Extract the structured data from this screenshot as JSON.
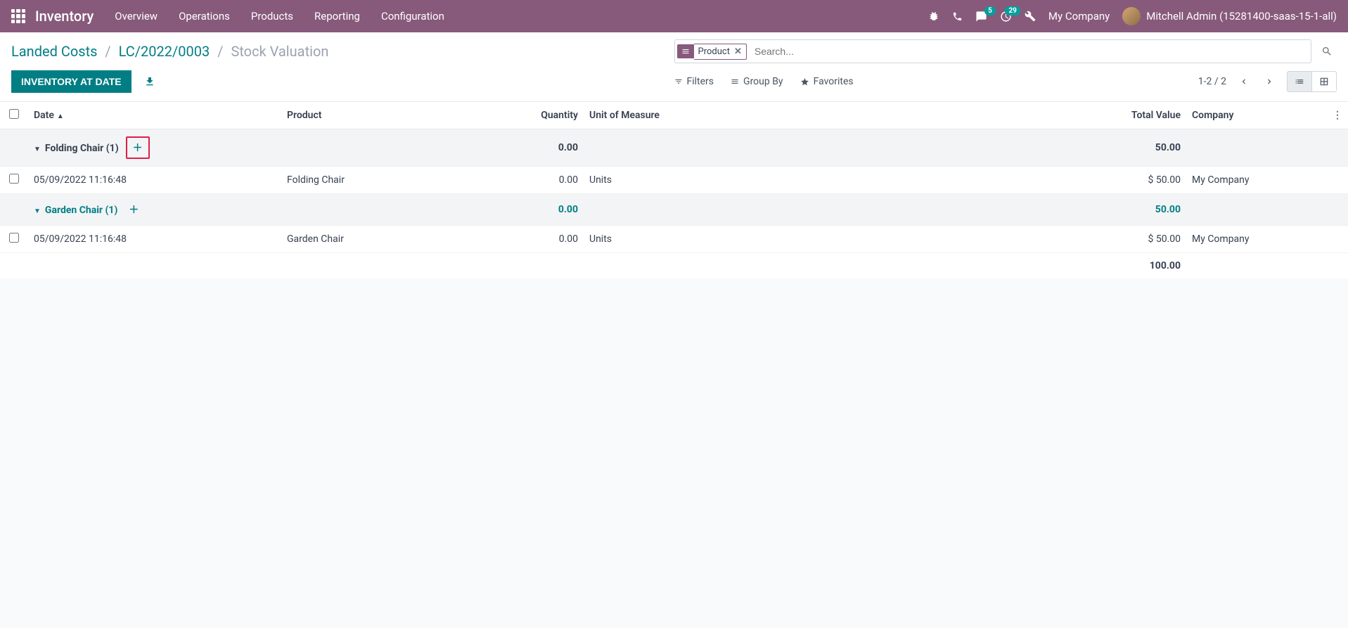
{
  "topnav": {
    "brand": "Inventory",
    "menu": [
      "Overview",
      "Operations",
      "Products",
      "Reporting",
      "Configuration"
    ],
    "msg_badge": "5",
    "activity_badge": "29",
    "company": "My Company",
    "user": "Mitchell Admin (15281400-saas-15-1-all)"
  },
  "breadcrumb": {
    "p1": "Landed Costs",
    "p2": "LC/2022/0003",
    "current": "Stock Valuation"
  },
  "search": {
    "facet_label": "Product",
    "placeholder": "Search..."
  },
  "buttons": {
    "inventory_at_date": "Inventory at Date"
  },
  "search_opts": {
    "filters": "Filters",
    "group_by": "Group By",
    "favorites": "Favorites"
  },
  "pager": "1-2 / 2",
  "columns": {
    "date": "Date",
    "product": "Product",
    "quantity": "Quantity",
    "uom": "Unit of Measure",
    "total": "Total Value",
    "company": "Company"
  },
  "groups": [
    {
      "title": "Folding Chair (1)",
      "qty": "0.00",
      "total": "50.00",
      "highlight_add": true,
      "teal": false,
      "rows": [
        {
          "date": "05/09/2022 11:16:48",
          "product": "Folding Chair",
          "qty": "0.00",
          "uom": "Units",
          "total": "$ 50.00",
          "company": "My Company"
        }
      ]
    },
    {
      "title": "Garden Chair (1)",
      "qty": "0.00",
      "total": "50.00",
      "highlight_add": false,
      "teal": true,
      "rows": [
        {
          "date": "05/09/2022 11:16:48",
          "product": "Garden Chair",
          "qty": "0.00",
          "uom": "Units",
          "total": "$ 50.00",
          "company": "My Company"
        }
      ]
    }
  ],
  "grand_total": "100.00",
  "colors": {
    "primary": "#875a7b",
    "teal": "#017e84",
    "highlight_border": "#e11d48"
  }
}
